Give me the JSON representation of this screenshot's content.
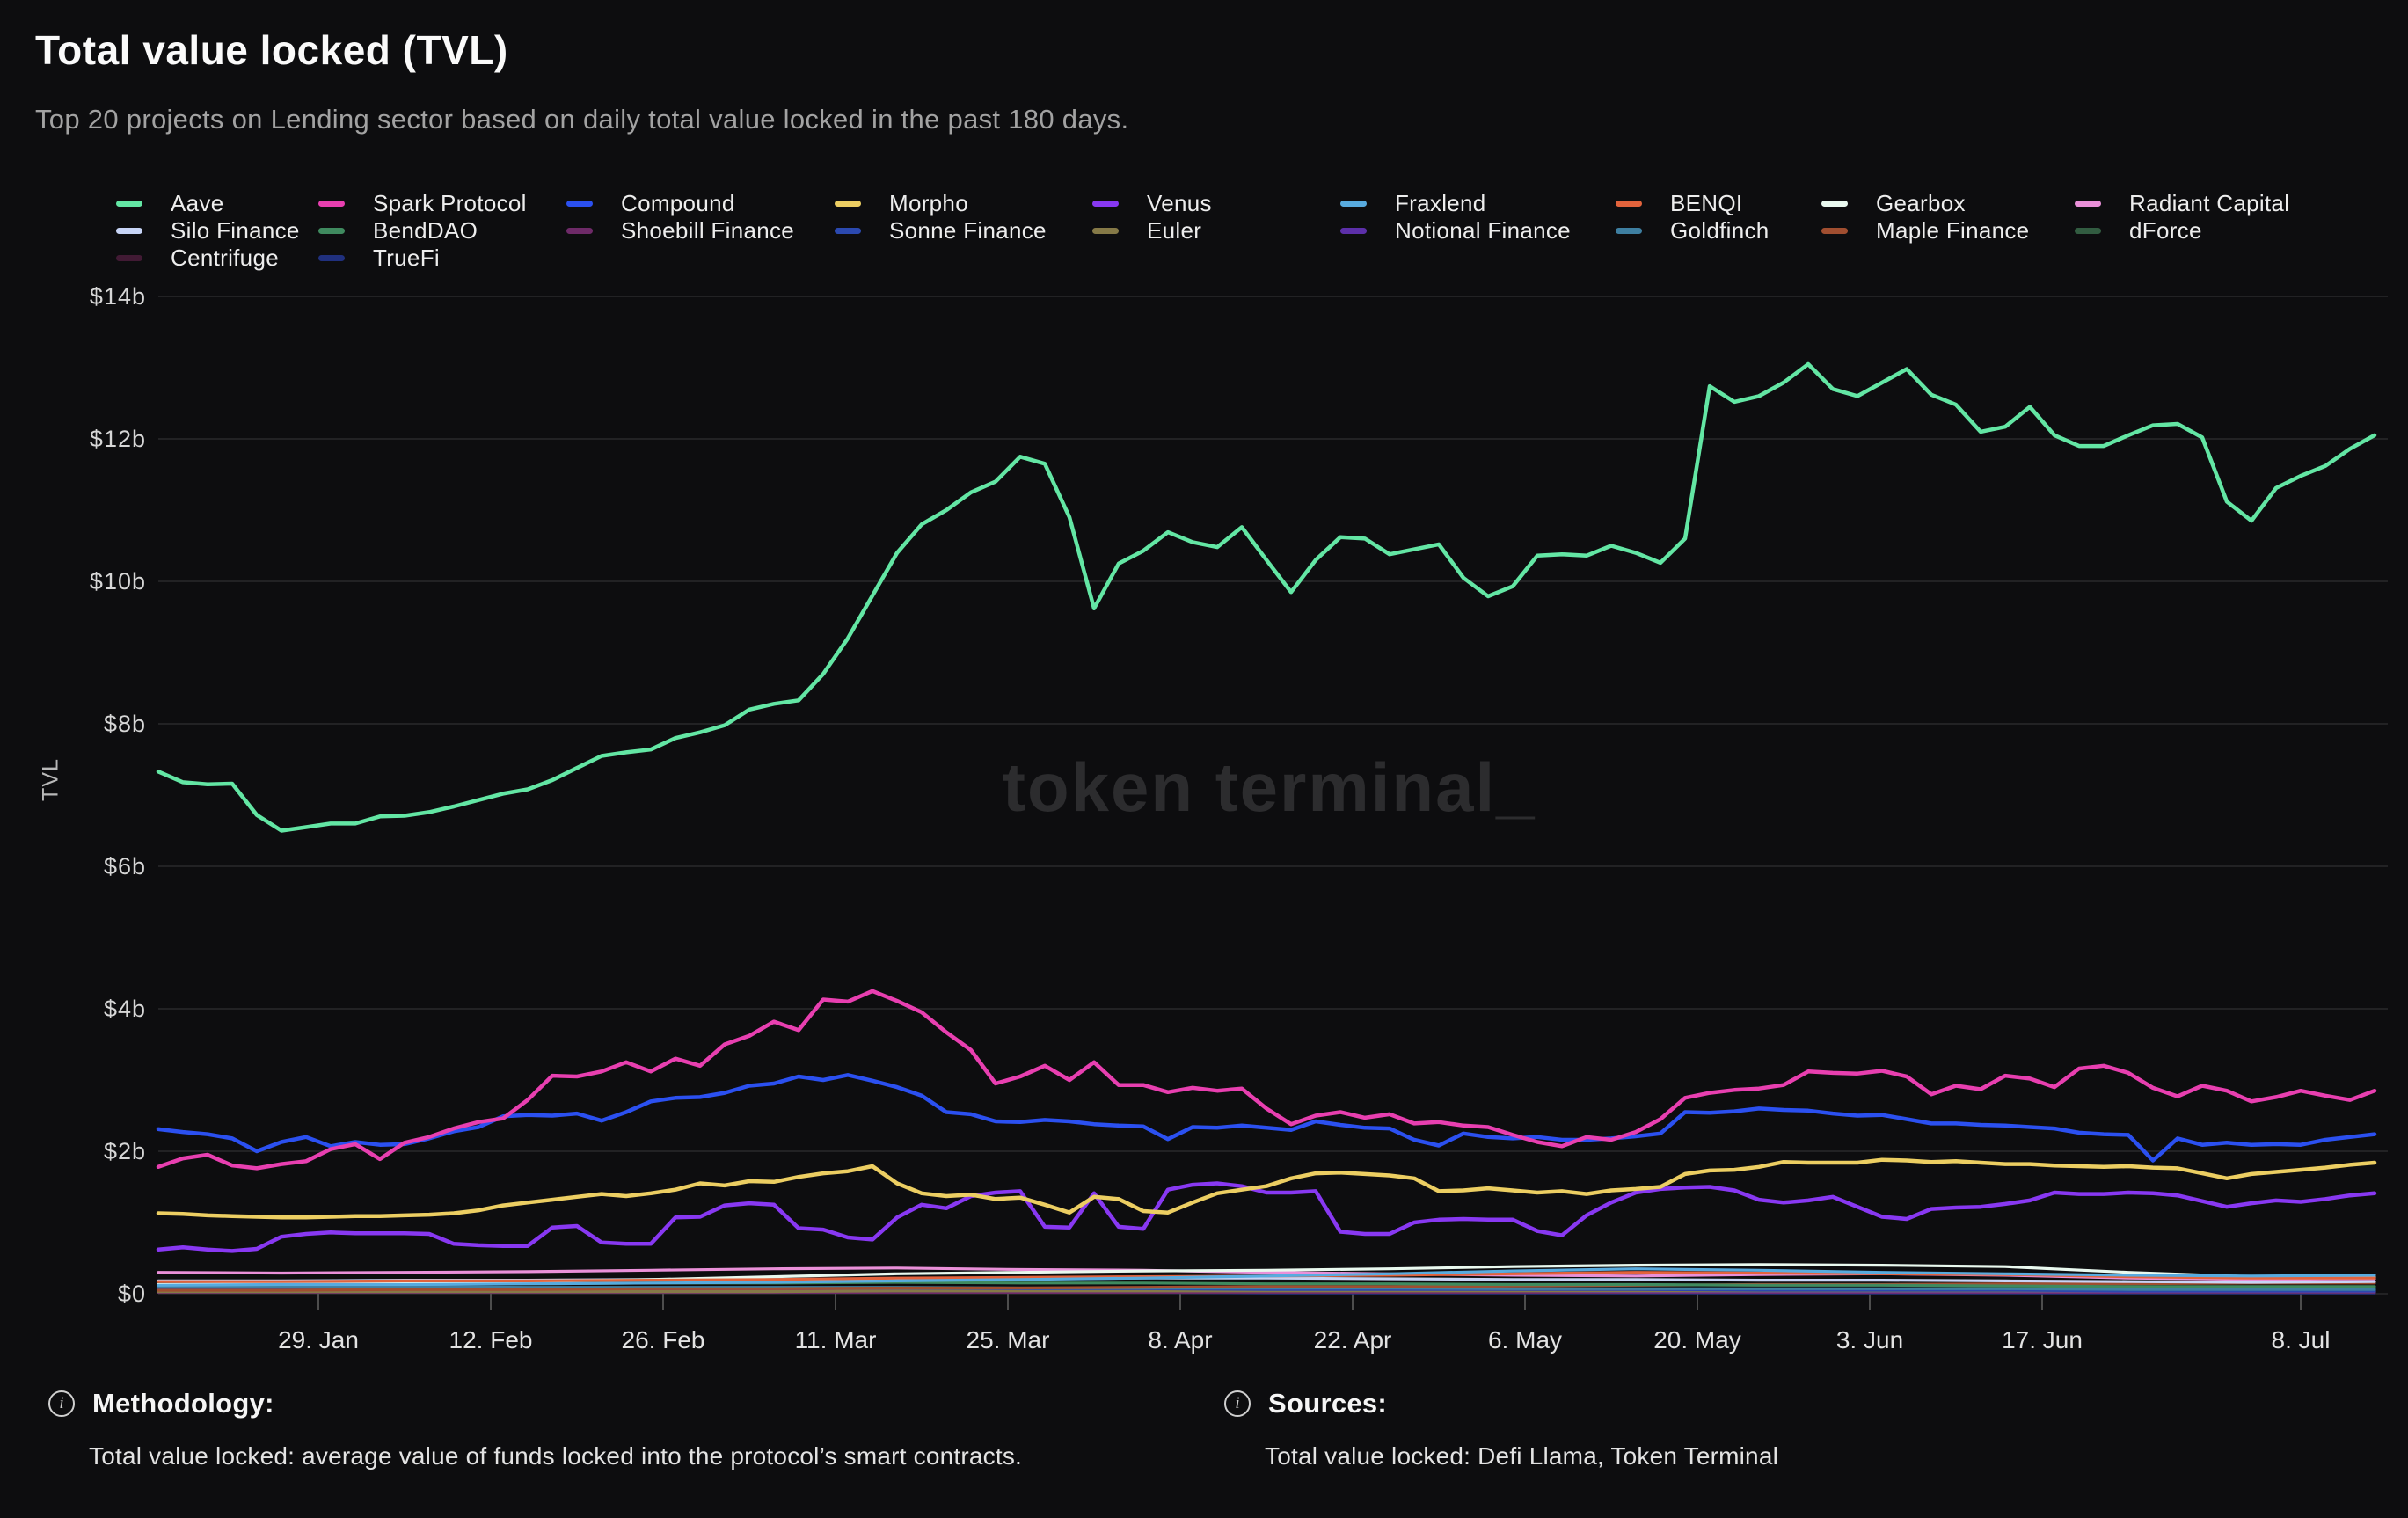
{
  "header": {
    "title": "Total value locked (TVL)",
    "subtitle": "Top 20 projects on Lending sector based on daily total value locked in the past 180 days."
  },
  "watermark": "token terminal_",
  "colors": {
    "background": "#0d0d0f",
    "gridline": "#29292b",
    "axis_text": "#d6d6d6",
    "tick_mark": "#4d4d4d",
    "watermark": "#2c2c2e"
  },
  "y_axis": {
    "label": "TVL",
    "ticks": [
      {
        "label": "$14b",
        "value": 14
      },
      {
        "label": "$12b",
        "value": 12
      },
      {
        "label": "$10b",
        "value": 10
      },
      {
        "label": "$8b",
        "value": 8
      },
      {
        "label": "$6b",
        "value": 6
      },
      {
        "label": "$4b",
        "value": 4
      },
      {
        "label": "$2b",
        "value": 2
      },
      {
        "label": "$0",
        "value": 0
      }
    ]
  },
  "x_axis": {
    "day_span": 180,
    "ticks": [
      {
        "label": "29. Jan",
        "day": 13
      },
      {
        "label": "12. Feb",
        "day": 27
      },
      {
        "label": "26. Feb",
        "day": 41
      },
      {
        "label": "11. Mar",
        "day": 55
      },
      {
        "label": "25. Mar",
        "day": 69
      },
      {
        "label": "8. Apr",
        "day": 83
      },
      {
        "label": "22. Apr",
        "day": 97
      },
      {
        "label": "6. May",
        "day": 111
      },
      {
        "label": "20. May",
        "day": 125
      },
      {
        "label": "3. Jun",
        "day": 139
      },
      {
        "label": "17. Jun",
        "day": 153
      },
      {
        "label": "8. Jul",
        "day": 174
      }
    ]
  },
  "legend_columns": {
    "widths": [
      230,
      282,
      305,
      293,
      282,
      313,
      234,
      288,
      300
    ],
    "columns": [
      [
        "Aave",
        "Silo Finance",
        "Centrifuge"
      ],
      [
        "Spark Protocol",
        "BendDAO",
        "TrueFi"
      ],
      [
        "Compound",
        "Shoebill Finance"
      ],
      [
        "Morpho",
        "Sonne Finance"
      ],
      [
        "Venus",
        "Euler"
      ],
      [
        "Fraxlend",
        "Notional Finance"
      ],
      [
        "BENQI",
        "Goldfinch"
      ],
      [
        "Gearbox",
        "Maple Finance"
      ],
      [
        "Radiant Capital",
        "dForce"
      ]
    ]
  },
  "footer": {
    "methodology_label": "Methodology:",
    "methodology_text": "Total value locked: average value of funds locked into the protocol’s smart contracts.",
    "sources_label": "Sources:",
    "sources_text": "Total value locked: Defi Llama, Token Terminal"
  },
  "chart_data": {
    "type": "line",
    "title": "Total value locked (TVL)",
    "ylabel": "TVL",
    "unit": "USD billions",
    "ylim": [
      0,
      14
    ],
    "x_range": "past 180 days (mid-Jan to mid-Jul), ticks every 14 days",
    "grid": "horizontal only",
    "legend_position": "top",
    "series": [
      {
        "name": "TrueFi",
        "color": "#20307e",
        "values": [
          0.02,
          0.02,
          0.02,
          0.02,
          0.02,
          0.02,
          0.02,
          0.02,
          0.02,
          0.01,
          0.01,
          0.01,
          0.01,
          0.01,
          0.01,
          0.01,
          0.01,
          0.01,
          0.01
        ]
      },
      {
        "name": "Centrifuge",
        "color": "#411a34",
        "values": [
          0.03,
          0.03,
          0.03,
          0.03,
          0.03,
          0.03,
          0.03,
          0.03,
          0.03,
          0.03,
          0.03,
          0.03,
          0.03,
          0.03,
          0.03,
          0.02,
          0.02,
          0.02,
          0.02
        ]
      },
      {
        "name": "Shoebill Finance",
        "color": "#6e2a68",
        "values": [
          0.02,
          0.02,
          0.02,
          0.02,
          0.02,
          0.02,
          0.02,
          0.02,
          0.02,
          0.02,
          0.02,
          0.02,
          0.02,
          0.02,
          0.02,
          0.02,
          0.02,
          0.02,
          0.02
        ]
      },
      {
        "name": "dForce",
        "color": "#325c41",
        "values": [
          0.04,
          0.04,
          0.04,
          0.04,
          0.04,
          0.04,
          0.04,
          0.04,
          0.04,
          0.04,
          0.04,
          0.04,
          0.04,
          0.04,
          0.04,
          0.04,
          0.03,
          0.03,
          0.03
        ]
      },
      {
        "name": "Notional Finance",
        "color": "#5c2fa9",
        "values": [
          0.06,
          0.06,
          0.05,
          0.05,
          0.05,
          0.05,
          0.05,
          0.04,
          0.04,
          0.04,
          0.04,
          0.04,
          0.03,
          0.03,
          0.03,
          0.03,
          0.03,
          0.03,
          0.03
        ]
      },
      {
        "name": "Euler",
        "color": "#857947",
        "values": [
          0.03,
          0.03,
          0.03,
          0.03,
          0.03,
          0.03,
          0.04,
          0.04,
          0.04,
          0.04,
          0.04,
          0.04,
          0.04,
          0.04,
          0.04,
          0.04,
          0.04,
          0.04,
          0.04
        ]
      },
      {
        "name": "Sonne Finance",
        "color": "#2b49b0",
        "values": [
          0.07,
          0.07,
          0.07,
          0.08,
          0.08,
          0.08,
          0.08,
          0.07,
          0.07,
          0.06,
          0.06,
          0.06,
          0.06,
          0.05,
          0.05,
          0.05,
          0.04,
          0.04,
          0.04
        ]
      },
      {
        "name": "Goldfinch",
        "color": "#3e7fa1",
        "values": [
          0.1,
          0.1,
          0.1,
          0.09,
          0.09,
          0.09,
          0.09,
          0.08,
          0.08,
          0.08,
          0.08,
          0.07,
          0.07,
          0.07,
          0.07,
          0.07,
          0.06,
          0.06,
          0.06
        ]
      },
      {
        "name": "Maple Finance",
        "color": "#a04e30",
        "values": [
          0.05,
          0.05,
          0.06,
          0.06,
          0.07,
          0.07,
          0.08,
          0.08,
          0.09,
          0.1,
          0.1,
          0.11,
          0.12,
          0.13,
          0.13,
          0.14,
          0.14,
          0.15,
          0.15
        ]
      },
      {
        "name": "BendDAO",
        "color": "#3f8a5f",
        "values": [
          0.13,
          0.13,
          0.14,
          0.14,
          0.15,
          0.15,
          0.16,
          0.15,
          0.15,
          0.14,
          0.14,
          0.13,
          0.13,
          0.12,
          0.12,
          0.11,
          0.1,
          0.1,
          0.1
        ]
      },
      {
        "name": "Silo Finance",
        "color": "#c7d4f6",
        "values": [
          0.18,
          0.18,
          0.19,
          0.19,
          0.2,
          0.2,
          0.21,
          0.21,
          0.22,
          0.22,
          0.21,
          0.2,
          0.2,
          0.19,
          0.19,
          0.18,
          0.17,
          0.16,
          0.17
        ]
      },
      {
        "name": "Radiant Capital",
        "color": "#ea90d9",
        "values": [
          0.3,
          0.29,
          0.3,
          0.31,
          0.33,
          0.35,
          0.36,
          0.34,
          0.33,
          0.3,
          0.28,
          0.26,
          0.25,
          0.27,
          0.28,
          0.26,
          0.22,
          0.2,
          0.21
        ]
      },
      {
        "name": "Gearbox",
        "color": "#e9f9ef",
        "values": [
          0.13,
          0.14,
          0.15,
          0.17,
          0.2,
          0.24,
          0.28,
          0.3,
          0.32,
          0.33,
          0.35,
          0.38,
          0.4,
          0.41,
          0.4,
          0.38,
          0.3,
          0.24,
          0.23
        ]
      },
      {
        "name": "BENQI",
        "color": "#e2633c",
        "values": [
          0.17,
          0.17,
          0.18,
          0.18,
          0.19,
          0.2,
          0.22,
          0.23,
          0.24,
          0.25,
          0.26,
          0.28,
          0.3,
          0.29,
          0.28,
          0.27,
          0.24,
          0.22,
          0.22
        ]
      },
      {
        "name": "Fraxlend",
        "color": "#58abdf",
        "values": [
          0.12,
          0.13,
          0.13,
          0.14,
          0.15,
          0.16,
          0.18,
          0.2,
          0.22,
          0.25,
          0.28,
          0.32,
          0.35,
          0.33,
          0.3,
          0.28,
          0.26,
          0.25,
          0.26
        ]
      },
      {
        "name": "Venus",
        "color": "#8838f2",
        "values": [
          0.62,
          0.65,
          0.62,
          0.6,
          0.63,
          0.8,
          0.84,
          0.86,
          0.85,
          0.85,
          0.85,
          0.84,
          0.7,
          0.68,
          0.67,
          0.67,
          0.93,
          0.95,
          0.72,
          0.7,
          0.7,
          1.07,
          1.08,
          1.24,
          1.27,
          1.25,
          0.92,
          0.9,
          0.79,
          0.76,
          1.07,
          1.25,
          1.2,
          1.37,
          1.42,
          1.44,
          0.94,
          0.93,
          1.41,
          0.94,
          0.91,
          1.46,
          1.53,
          1.55,
          1.51,
          1.42,
          1.42,
          1.44,
          0.87,
          0.84,
          0.84,
          1.0,
          1.04,
          1.05,
          1.04,
          1.04,
          0.88,
          0.82,
          1.1,
          1.28,
          1.42,
          1.47,
          1.49,
          1.5,
          1.45,
          1.32,
          1.28,
          1.31,
          1.36,
          1.22,
          1.08,
          1.05,
          1.19,
          1.21,
          1.22,
          1.26,
          1.31,
          1.42,
          1.4,
          1.4,
          1.42,
          1.41,
          1.38,
          1.3,
          1.22,
          1.27,
          1.31,
          1.29,
          1.33,
          1.38,
          1.41
        ]
      },
      {
        "name": "Morpho",
        "color": "#ecce62",
        "values": [
          1.13,
          1.12,
          1.1,
          1.09,
          1.08,
          1.07,
          1.07,
          1.08,
          1.09,
          1.09,
          1.1,
          1.11,
          1.13,
          1.17,
          1.24,
          1.28,
          1.32,
          1.36,
          1.4,
          1.37,
          1.41,
          1.46,
          1.55,
          1.52,
          1.58,
          1.57,
          1.64,
          1.69,
          1.72,
          1.79,
          1.55,
          1.41,
          1.37,
          1.39,
          1.33,
          1.35,
          1.25,
          1.14,
          1.36,
          1.33,
          1.16,
          1.14,
          1.28,
          1.41,
          1.46,
          1.51,
          1.62,
          1.69,
          1.7,
          1.68,
          1.66,
          1.62,
          1.44,
          1.45,
          1.48,
          1.45,
          1.42,
          1.44,
          1.4,
          1.45,
          1.47,
          1.5,
          1.68,
          1.73,
          1.74,
          1.78,
          1.85,
          1.84,
          1.84,
          1.84,
          1.88,
          1.87,
          1.85,
          1.86,
          1.84,
          1.82,
          1.82,
          1.8,
          1.79,
          1.78,
          1.79,
          1.77,
          1.76,
          1.69,
          1.62,
          1.68,
          1.71,
          1.74,
          1.77,
          1.81,
          1.84
        ]
      },
      {
        "name": "Compound",
        "color": "#2b50f0",
        "values": [
          2.31,
          2.27,
          2.24,
          2.18,
          2.0,
          2.13,
          2.2,
          2.07,
          2.13,
          2.09,
          2.1,
          2.18,
          2.28,
          2.34,
          2.49,
          2.51,
          2.5,
          2.53,
          2.43,
          2.55,
          2.7,
          2.75,
          2.76,
          2.82,
          2.92,
          2.95,
          3.05,
          3.0,
          3.07,
          2.99,
          2.9,
          2.78,
          2.55,
          2.52,
          2.42,
          2.41,
          2.44,
          2.42,
          2.38,
          2.36,
          2.35,
          2.17,
          2.34,
          2.33,
          2.36,
          2.33,
          2.3,
          2.42,
          2.37,
          2.33,
          2.32,
          2.16,
          2.08,
          2.25,
          2.2,
          2.18,
          2.2,
          2.16,
          2.16,
          2.18,
          2.21,
          2.25,
          2.55,
          2.54,
          2.56,
          2.6,
          2.58,
          2.57,
          2.53,
          2.5,
          2.51,
          2.45,
          2.39,
          2.39,
          2.37,
          2.36,
          2.34,
          2.32,
          2.26,
          2.24,
          2.23,
          1.87,
          2.18,
          2.09,
          2.12,
          2.09,
          2.1,
          2.09,
          2.16,
          2.2,
          2.24
        ]
      },
      {
        "name": "Spark Protocol",
        "color": "#e83fb0",
        "values": [
          1.78,
          1.9,
          1.95,
          1.8,
          1.76,
          1.82,
          1.86,
          2.03,
          2.1,
          1.89,
          2.12,
          2.2,
          2.32,
          2.41,
          2.46,
          2.72,
          3.06,
          3.05,
          3.12,
          3.25,
          3.12,
          3.3,
          3.2,
          3.5,
          3.62,
          3.82,
          3.7,
          4.13,
          4.1,
          4.25,
          4.11,
          3.95,
          3.67,
          3.42,
          2.95,
          3.05,
          3.2,
          3.0,
          3.25,
          2.93,
          2.93,
          2.83,
          2.89,
          2.85,
          2.88,
          2.6,
          2.38,
          2.5,
          2.55,
          2.47,
          2.52,
          2.39,
          2.41,
          2.36,
          2.34,
          2.23,
          2.13,
          2.07,
          2.2,
          2.16,
          2.27,
          2.45,
          2.75,
          2.82,
          2.86,
          2.88,
          2.93,
          3.12,
          3.1,
          3.09,
          3.13,
          3.05,
          2.8,
          2.92,
          2.87,
          3.06,
          3.02,
          2.9,
          3.16,
          3.2,
          3.1,
          2.89,
          2.77,
          2.92,
          2.85,
          2.7,
          2.76,
          2.85,
          2.78,
          2.72,
          2.85
        ]
      },
      {
        "name": "Aave",
        "color": "#63e6a4",
        "values": [
          7.33,
          7.18,
          7.15,
          7.16,
          6.72,
          6.5,
          6.55,
          6.6,
          6.6,
          6.7,
          6.71,
          6.76,
          6.84,
          6.93,
          7.02,
          7.08,
          7.21,
          7.38,
          7.55,
          7.6,
          7.64,
          7.8,
          7.88,
          7.98,
          8.2,
          8.28,
          8.33,
          8.7,
          9.2,
          9.8,
          10.4,
          10.8,
          11.0,
          11.25,
          11.4,
          11.75,
          11.65,
          10.9,
          9.62,
          10.25,
          10.43,
          10.69,
          10.55,
          10.48,
          10.76,
          10.3,
          9.85,
          10.3,
          10.62,
          10.6,
          10.38,
          10.45,
          10.52,
          10.05,
          9.79,
          9.93,
          10.36,
          10.38,
          10.36,
          10.5,
          10.4,
          10.26,
          10.6,
          12.74,
          12.52,
          12.6,
          12.79,
          13.05,
          12.7,
          12.6,
          12.79,
          12.98,
          12.62,
          12.48,
          12.1,
          12.17,
          12.45,
          12.05,
          11.9,
          11.9,
          12.05,
          12.19,
          12.21,
          12.02,
          11.12,
          10.85,
          11.31,
          11.48,
          11.62,
          11.86,
          12.05
        ]
      }
    ]
  }
}
